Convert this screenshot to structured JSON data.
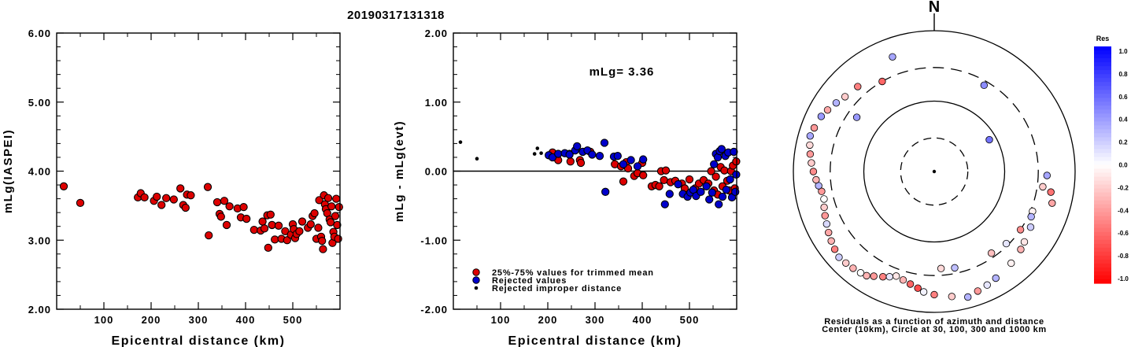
{
  "title": "20190317131318",
  "colors": {
    "trimmed": "#dd0000",
    "rejected": "#0000cc",
    "improper": "#000000"
  },
  "chart_data": [
    {
      "type": "scatter",
      "xlabel": "Epicentral distance (km)",
      "ylabel": "mLg(IASPEI)",
      "xlim": [
        0,
        600
      ],
      "ylim": [
        2,
        6
      ],
      "xticks": [
        "100",
        "200",
        "300",
        "400",
        "500"
      ],
      "yticks": [
        "2.00",
        "3.00",
        "4.00",
        "5.00",
        "6.00"
      ],
      "series": [
        {
          "points": [
            [
              15,
              3.78
            ],
            [
              50,
              3.54
            ],
            [
              172,
              3.62
            ],
            [
              178,
              3.68
            ],
            [
              186,
              3.62
            ],
            [
              206,
              3.57
            ],
            [
              212,
              3.63
            ],
            [
              222,
              3.51
            ],
            [
              232,
              3.61
            ],
            [
              248,
              3.59
            ],
            [
              262,
              3.75
            ],
            [
              268,
              3.51
            ],
            [
              273,
              3.47
            ],
            [
              276,
              3.66
            ],
            [
              284,
              3.65
            ],
            [
              320,
              3.77
            ],
            [
              322,
              3.07
            ],
            [
              340,
              3.55
            ],
            [
              345,
              3.38
            ],
            [
              348,
              3.34
            ],
            [
              355,
              3.57
            ],
            [
              360,
              3.22
            ],
            [
              366,
              3.49
            ],
            [
              383,
              3.46
            ],
            [
              390,
              3.33
            ],
            [
              396,
              3.48
            ],
            [
              402,
              3.31
            ],
            [
              418,
              3.15
            ],
            [
              432,
              3.14
            ],
            [
              436,
              3.27
            ],
            [
              440,
              3.17
            ],
            [
              446,
              3.36
            ],
            [
              448,
              2.89
            ],
            [
              453,
              3.37
            ],
            [
              456,
              3.22
            ],
            [
              462,
              3.01
            ],
            [
              470,
              3.21
            ],
            [
              476,
              3.02
            ],
            [
              484,
              3.13
            ],
            [
              488,
              3.0
            ],
            [
              496,
              3.08
            ],
            [
              500,
              3.23
            ],
            [
              502,
              3.16
            ],
            [
              505,
              3.03
            ],
            [
              508,
              3.09
            ],
            [
              514,
              3.13
            ],
            [
              520,
              3.27
            ],
            [
              532,
              3.18
            ],
            [
              538,
              3.23
            ],
            [
              542,
              3.35
            ],
            [
              546,
              3.39
            ],
            [
              550,
              3.02
            ],
            [
              554,
              3.18
            ],
            [
              556,
              3.58
            ],
            [
              560,
              3.05
            ],
            [
              562,
              2.99
            ],
            [
              564,
              2.87
            ],
            [
              566,
              3.65
            ],
            [
              568,
              3.52
            ],
            [
              570,
              3.45
            ],
            [
              573,
              3.39
            ],
            [
              575,
              3.61
            ],
            [
              578,
              3.3
            ],
            [
              580,
              3.26
            ],
            [
              582,
              3.49
            ],
            [
              584,
              2.96
            ],
            [
              586,
              3.12
            ],
            [
              588,
              3.05
            ],
            [
              590,
              3.35
            ],
            [
              592,
              3.6
            ],
            [
              594,
              3.22
            ],
            [
              596,
              3.02
            ],
            [
              598,
              3.48
            ]
          ]
        }
      ]
    },
    {
      "type": "scatter",
      "xlabel": "Epicentral distance (km)",
      "ylabel": "mLg - mLg(evt)",
      "xlim": [
        0,
        600
      ],
      "ylim": [
        -2,
        2
      ],
      "xticks": [
        "100",
        "200",
        "300",
        "400",
        "500"
      ],
      "yticks": [
        "-2.00",
        "-1.00",
        "0.00",
        "1.00",
        "2.00"
      ],
      "annotation": "mLg= 3.36",
      "reference_line": 0,
      "legend": [
        "25%-75% values for trimmed mean",
        "Rejected values",
        "Rejected improper distance"
      ],
      "series": [
        {
          "kind": "trimmed",
          "points": [
            [
              210,
              0.27
            ],
            [
              222,
              0.16
            ],
            [
              246,
              0.25
            ],
            [
              248,
              0.14
            ],
            [
              268,
              0.16
            ],
            [
              270,
              0.12
            ],
            [
              290,
              0.28
            ],
            [
              342,
              0.1
            ],
            [
              355,
              0.07
            ],
            [
              360,
              -0.15
            ],
            [
              366,
              0.13
            ],
            [
              370,
              0.04
            ],
            [
              383,
              -0.07
            ],
            [
              390,
              -0.03
            ],
            [
              400,
              0.12
            ],
            [
              402,
              -0.06
            ],
            [
              420,
              -0.22
            ],
            [
              428,
              -0.2
            ],
            [
              436,
              -0.22
            ],
            [
              440,
              0.0
            ],
            [
              446,
              -0.13
            ],
            [
              450,
              0.01
            ],
            [
              460,
              -0.16
            ],
            [
              470,
              -0.14
            ],
            [
              484,
              -0.18
            ],
            [
              490,
              -0.25
            ],
            [
              500,
              -0.12
            ],
            [
              512,
              -0.25
            ],
            [
              520,
              -0.18
            ],
            [
              530,
              -0.13
            ],
            [
              540,
              -0.18
            ],
            [
              546,
              0.0
            ],
            [
              552,
              -0.28
            ],
            [
              556,
              -0.08
            ],
            [
              560,
              -0.34
            ],
            [
              566,
              0.06
            ],
            [
              570,
              -0.22
            ],
            [
              574,
              0.01
            ],
            [
              580,
              -0.14
            ],
            [
              584,
              -0.28
            ],
            [
              588,
              0.0
            ],
            [
              592,
              0.08
            ],
            [
              596,
              -0.25
            ],
            [
              599,
              0.14
            ]
          ]
        },
        {
          "kind": "rejected",
          "points": [
            [
              202,
              0.23
            ],
            [
              210,
              0.2
            ],
            [
              222,
              0.25
            ],
            [
              236,
              0.26
            ],
            [
              246,
              0.24
            ],
            [
              258,
              0.3
            ],
            [
              262,
              0.36
            ],
            [
              274,
              0.28
            ],
            [
              284,
              0.3
            ],
            [
              294,
              0.24
            ],
            [
              310,
              0.22
            ],
            [
              320,
              0.41
            ],
            [
              322,
              -0.3
            ],
            [
              340,
              0.21
            ],
            [
              348,
              0.22
            ],
            [
              360,
              0.1
            ],
            [
              376,
              0.16
            ],
            [
              390,
              0.07
            ],
            [
              402,
              0.17
            ],
            [
              448,
              -0.48
            ],
            [
              458,
              -0.33
            ],
            [
              476,
              -0.19
            ],
            [
              486,
              -0.33
            ],
            [
              496,
              -0.37
            ],
            [
              502,
              -0.31
            ],
            [
              508,
              -0.27
            ],
            [
              514,
              -0.36
            ],
            [
              524,
              -0.3
            ],
            [
              536,
              -0.22
            ],
            [
              542,
              -0.41
            ],
            [
              548,
              -0.31
            ],
            [
              552,
              0.1
            ],
            [
              556,
              0.25
            ],
            [
              560,
              0.2
            ],
            [
              562,
              -0.48
            ],
            [
              564,
              0.29
            ],
            [
              568,
              0.32
            ],
            [
              570,
              -0.37
            ],
            [
              576,
              0.22
            ],
            [
              578,
              -0.27
            ],
            [
              582,
              0.27
            ],
            [
              586,
              -0.12
            ],
            [
              590,
              -0.38
            ],
            [
              594,
              0.28
            ],
            [
              597,
              -0.3
            ],
            [
              599,
              -0.05
            ]
          ]
        },
        {
          "kind": "improper",
          "points": [
            [
              15,
              0.42
            ],
            [
              50,
              0.18
            ],
            [
              172,
              0.25
            ],
            [
              178,
              0.33
            ],
            [
              186,
              0.26
            ]
          ]
        }
      ]
    },
    {
      "type": "polar",
      "title_letter": "N",
      "caption_lines": [
        "Residuals as a function of azimuth and distance",
        "Center (10km), Circle at 30, 100, 300 and 1000 km"
      ],
      "colorbar": {
        "label": "Res",
        "ticks": [
          "1.0",
          "0.8",
          "0.6",
          "0.4",
          "0.2",
          "0.0",
          "-0.2",
          "-0.4",
          "-0.6",
          "-0.8",
          "-1.0"
        ]
      },
      "points": [
        [
          112,
          -0.05
        ],
        [
          120,
          0.2
        ],
        [
          128,
          -0.1
        ],
        [
          132,
          -0.3
        ],
        [
          140,
          -0.05
        ],
        [
          150,
          0.3
        ],
        [
          155,
          0.1
        ],
        [
          160,
          -0.4
        ],
        [
          165,
          0.3
        ],
        [
          172,
          -0.2
        ],
        [
          180,
          -0.5
        ],
        [
          185,
          0.05
        ],
        [
          188,
          -0.7
        ],
        [
          192,
          -0.6
        ],
        [
          196,
          -0.3
        ],
        [
          200,
          -0.1
        ],
        [
          203,
          0.1
        ],
        [
          206,
          -0.5
        ],
        [
          210,
          -0.4
        ],
        [
          213,
          -0.3
        ],
        [
          216,
          0.0
        ],
        [
          220,
          -0.3
        ],
        [
          224,
          -0.2
        ],
        [
          228,
          0.2
        ],
        [
          232,
          -0.5
        ],
        [
          236,
          -0.3
        ],
        [
          240,
          -0.35
        ],
        [
          244,
          0.15
        ],
        [
          248,
          -0.4
        ],
        [
          252,
          -0.2
        ],
        [
          256,
          0.0
        ],
        [
          260,
          -0.4
        ],
        [
          263,
          0.3
        ],
        [
          266,
          -0.3
        ],
        [
          270,
          -0.45
        ],
        [
          274,
          -0.2
        ],
        [
          278,
          -0.4
        ],
        [
          282,
          -0.15
        ],
        [
          286,
          0.35
        ],
        [
          290,
          -0.4
        ],
        [
          296,
          0.4
        ],
        [
          300,
          -0.35
        ],
        [
          305,
          0.3
        ],
        [
          310,
          -0.2
        ],
        [
          318,
          -0.5
        ],
        [
          100,
          -0.55
        ],
        [
          105,
          -0.35
        ],
        [
          92,
          0.35
        ],
        [
          98,
          -0.2
        ],
        [
          115,
          0.3
        ],
        [
          124,
          -0.45
        ],
        [
          135,
          0.1
        ],
        [
          145,
          -0.25
        ],
        [
          168,
          0.25
        ],
        [
          176,
          -0.15
        ],
        [
          30,
          0.45
        ],
        [
          330,
          -0.6
        ],
        [
          305,
          0.4
        ],
        [
          60,
          0.55
        ],
        [
          340,
          0.35
        ]
      ]
    }
  ]
}
